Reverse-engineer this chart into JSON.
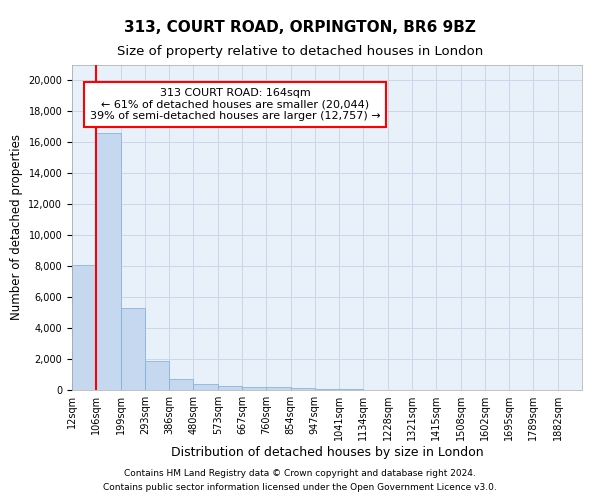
{
  "title1": "313, COURT ROAD, ORPINGTON, BR6 9BZ",
  "title2": "Size of property relative to detached houses in London",
  "xlabel": "Distribution of detached houses by size in London",
  "ylabel": "Number of detached properties",
  "bar_color": "#c5d8f0",
  "bar_edge_color": "#7aadd4",
  "grid_color": "#c8d8ea",
  "background_color": "#e8f1fa",
  "marker_line_color": "red",
  "marker_value_bin": 1,
  "annotation_text": "313 COURT ROAD: 164sqm\n← 61% of detached houses are smaller (20,044)\n39% of semi-detached houses are larger (12,757) →",
  "annotation_box_color": "white",
  "annotation_box_edge": "red",
  "categories": [
    "12sqm",
    "106sqm",
    "199sqm",
    "293sqm",
    "386sqm",
    "480sqm",
    "573sqm",
    "667sqm",
    "760sqm",
    "854sqm",
    "947sqm",
    "1041sqm",
    "1134sqm",
    "1228sqm",
    "1321sqm",
    "1415sqm",
    "1508sqm",
    "1602sqm",
    "1695sqm",
    "1789sqm",
    "1882sqm"
  ],
  "n_bins": 21,
  "values": [
    8100,
    16600,
    5300,
    1850,
    700,
    360,
    270,
    220,
    200,
    160,
    70,
    35,
    22,
    15,
    10,
    7,
    5,
    3,
    3,
    2,
    1
  ],
  "ylim": [
    0,
    21000
  ],
  "yticks": [
    0,
    2000,
    4000,
    6000,
    8000,
    10000,
    12000,
    14000,
    16000,
    18000,
    20000
  ],
  "footer1": "Contains HM Land Registry data © Crown copyright and database right 2024.",
  "footer2": "Contains public sector information licensed under the Open Government Licence v3.0.",
  "title1_fontsize": 11,
  "title2_fontsize": 9.5,
  "ylabel_fontsize": 8.5,
  "xlabel_fontsize": 9,
  "tick_fontsize": 7,
  "annotation_fontsize": 8,
  "footer_fontsize": 6.5
}
